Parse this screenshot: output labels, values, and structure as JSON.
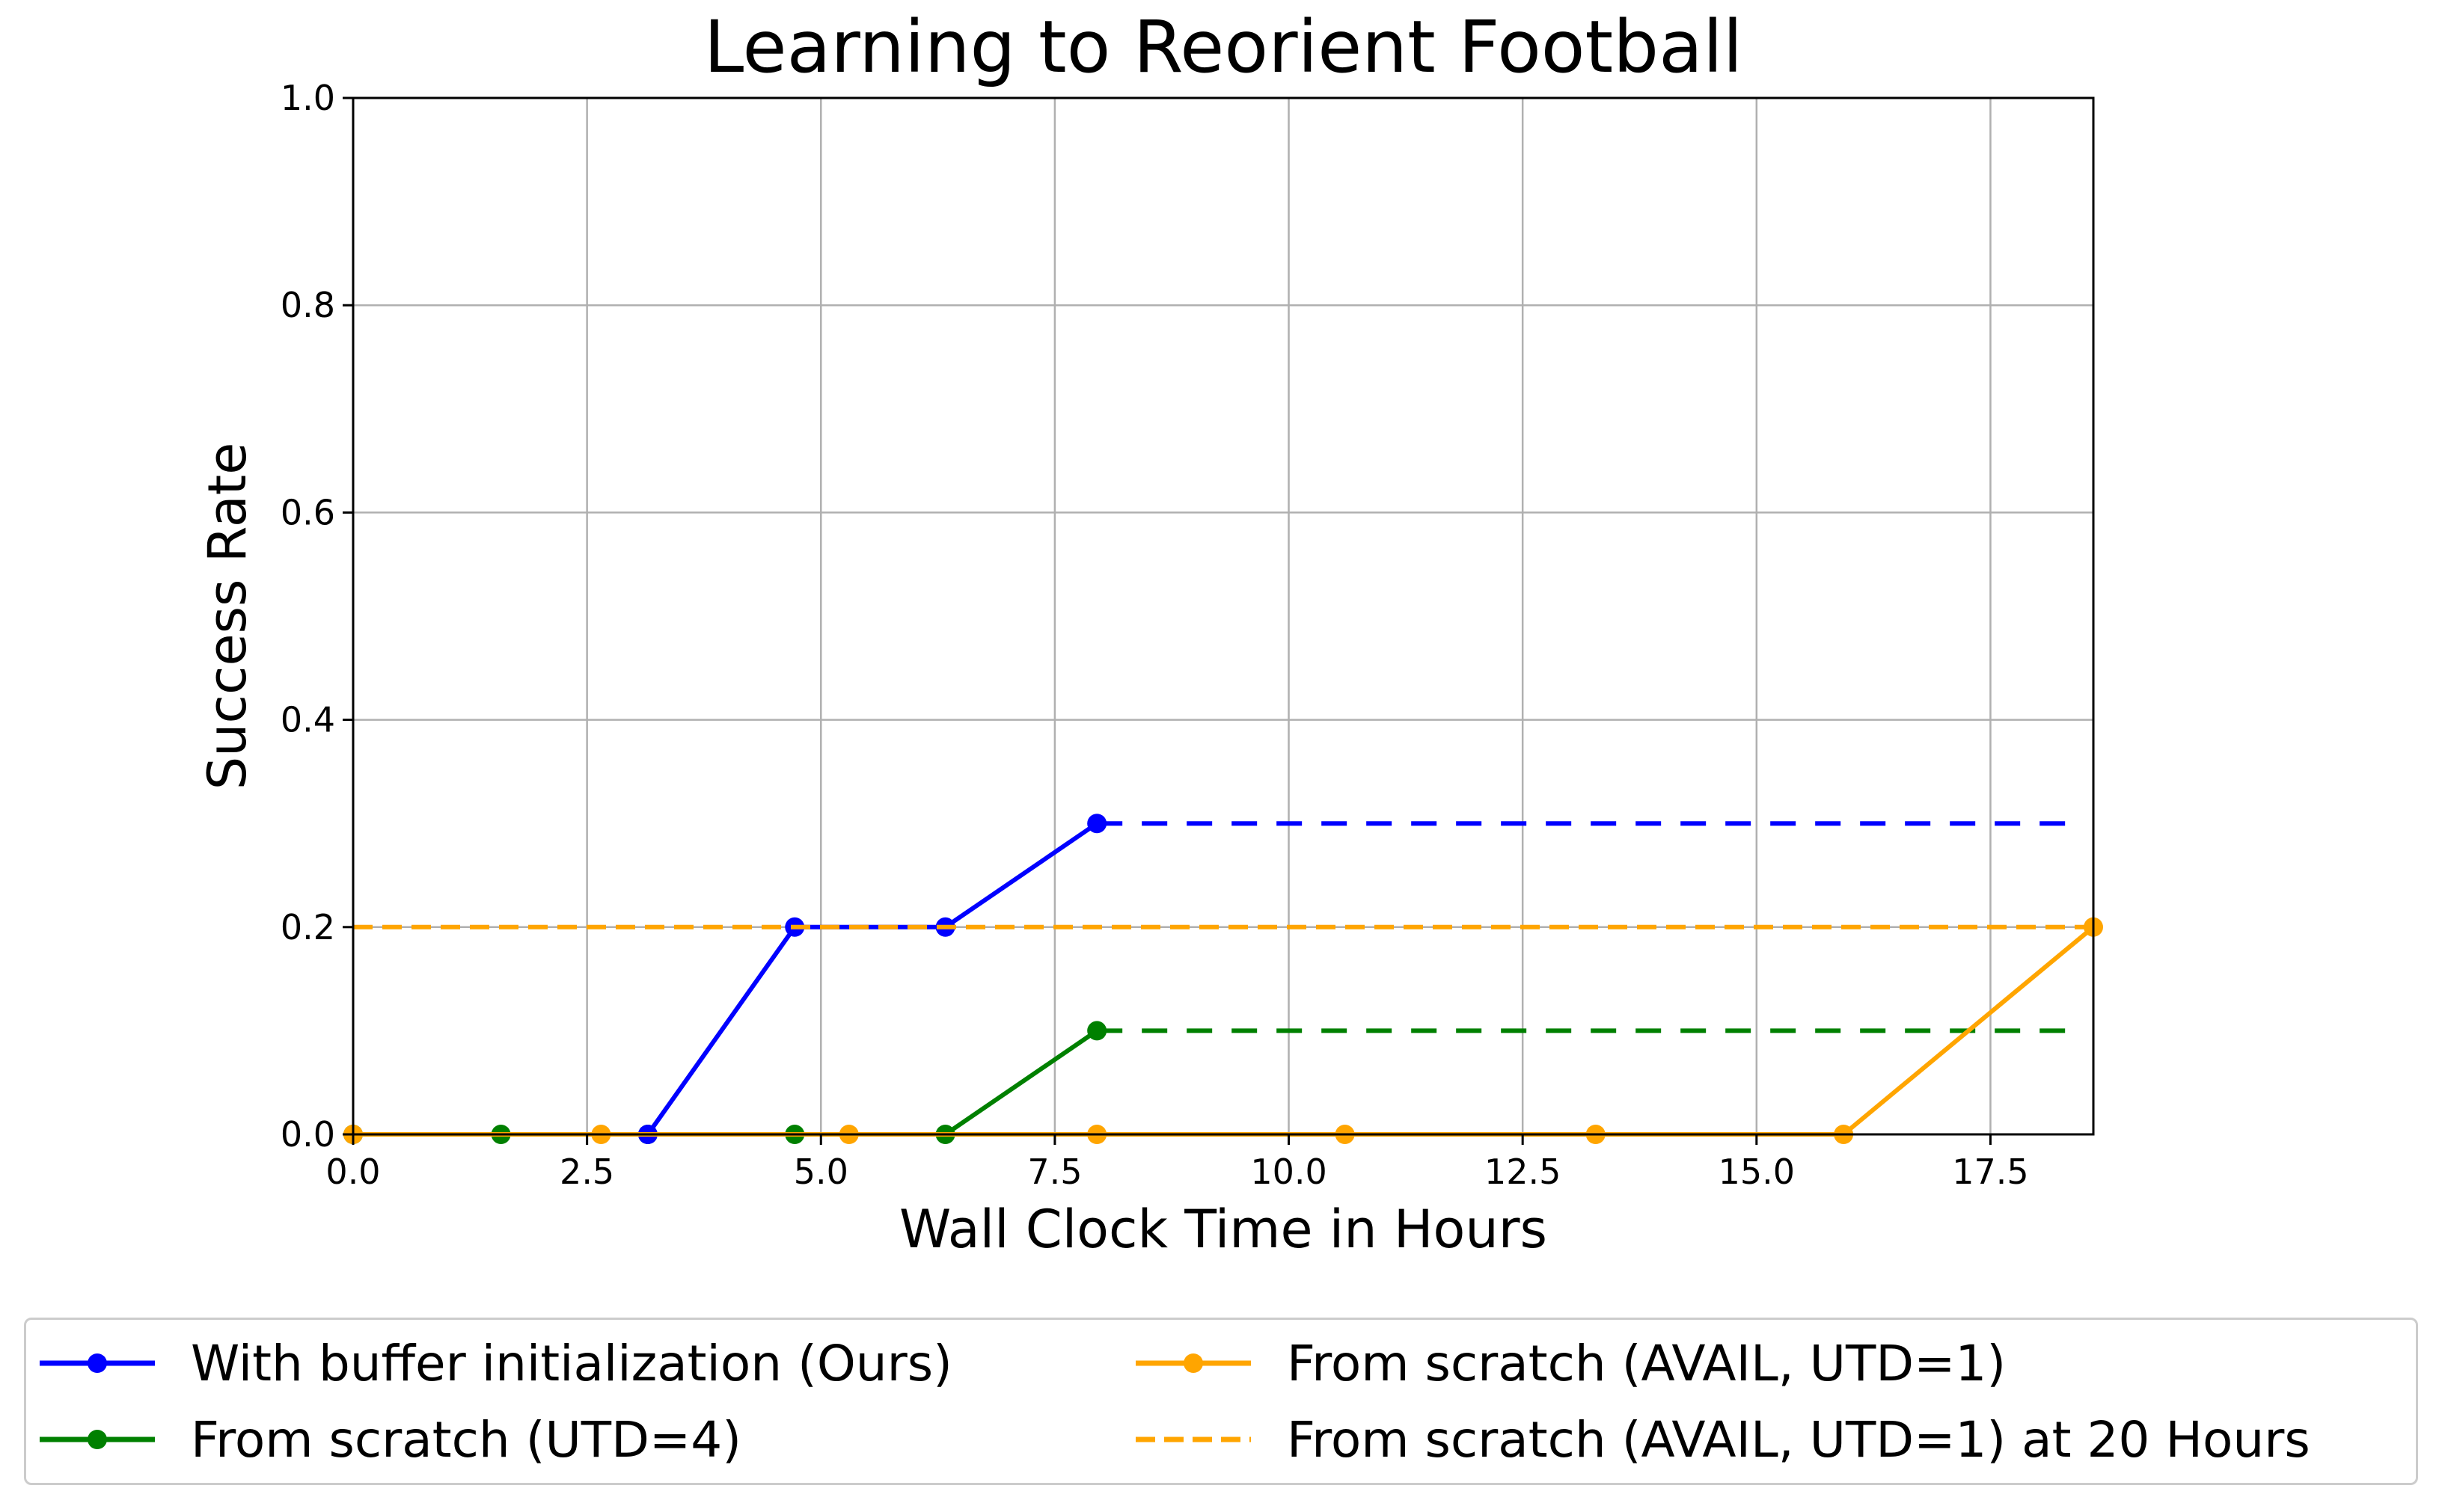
{
  "chart_data": {
    "type": "line",
    "title": "Learning to Reorient Football",
    "xlabel": "Wall Clock Time in Hours",
    "ylabel": "Success Rate",
    "xlim": [
      0,
      18.6
    ],
    "ylim": [
      0,
      1.0
    ],
    "xticks": [
      "0.0",
      "2.5",
      "5.0",
      "7.5",
      "10.0",
      "12.5",
      "15.0",
      "17.5"
    ],
    "xtick_values": [
      0,
      2.5,
      5.0,
      7.5,
      10.0,
      12.5,
      15.0,
      17.5
    ],
    "yticks": [
      "0.0",
      "0.2",
      "0.4",
      "0.6",
      "0.8",
      "1.0"
    ],
    "ytick_values": [
      0,
      0.2,
      0.4,
      0.6,
      0.8,
      1.0
    ],
    "grid": true,
    "legend_position": "bottom",
    "series": [
      {
        "name": "With buffer initialization (Ours)",
        "color": "#0000ff",
        "style": "solid-marker",
        "x": [
          3.15,
          4.72,
          6.33,
          7.95
        ],
        "y": [
          0.0,
          0.2,
          0.2,
          0.3
        ],
        "extension": {
          "x": [
            7.95,
            18.3
          ],
          "y": [
            0.3,
            0.3
          ],
          "style": "dashed"
        }
      },
      {
        "name": "From scratch (UTD=4)",
        "color": "#008000",
        "style": "solid-marker",
        "x": [
          0.0,
          1.58,
          3.15,
          4.72,
          6.33,
          7.95
        ],
        "y": [
          0.0,
          0.0,
          0.0,
          0.0,
          0.0,
          0.1
        ],
        "extension": {
          "x": [
            7.95,
            18.3
          ],
          "y": [
            0.1,
            0.1
          ],
          "style": "dashed"
        }
      },
      {
        "name": "From scratch (AVAIL, UTD=1)",
        "color": "#ffa500",
        "style": "solid-marker",
        "x": [
          0.0,
          2.65,
          5.3,
          7.95,
          10.6,
          13.28,
          15.93,
          18.6
        ],
        "y": [
          0.0,
          0.0,
          0.0,
          0.0,
          0.0,
          0.0,
          0.0,
          0.2
        ]
      },
      {
        "name": "From scratch (AVAIL, UTD=1) at 20 Hours",
        "color": "#ffa500",
        "style": "dashed",
        "x": [
          0.0,
          18.6
        ],
        "y": [
          0.2,
          0.2
        ]
      }
    ]
  }
}
